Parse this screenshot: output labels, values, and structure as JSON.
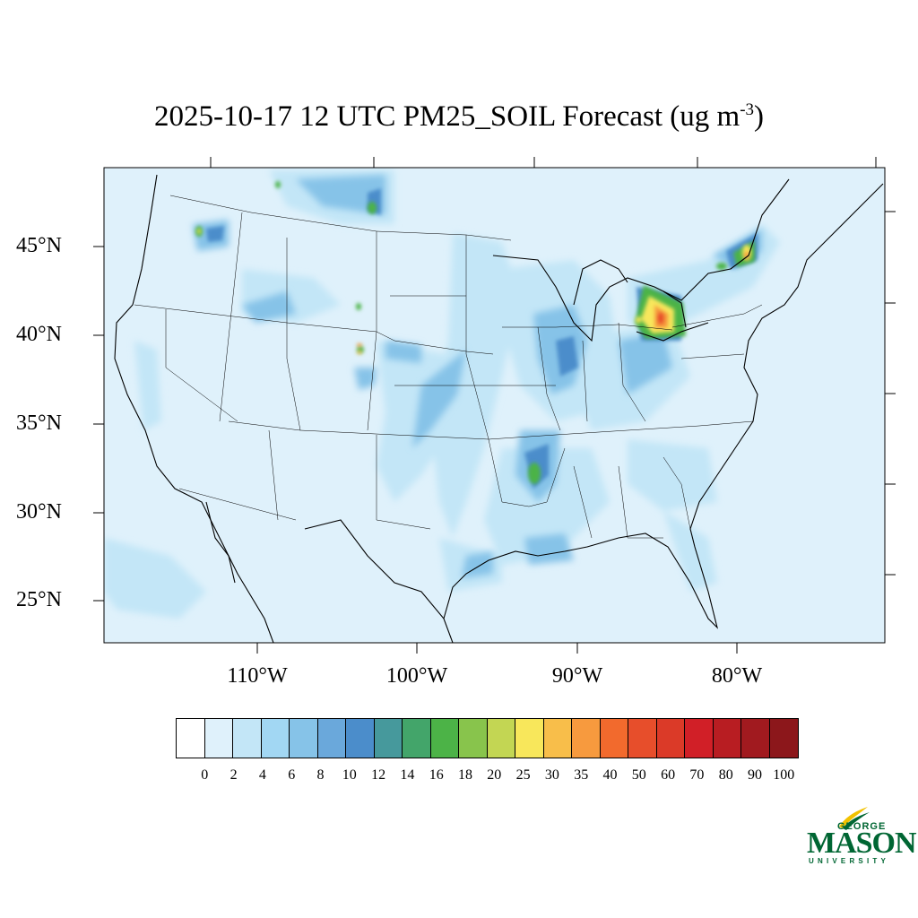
{
  "title": {
    "main": "2025-10-17 12 UTC PM25_SOIL Forecast (ug m",
    "superscript": "-3",
    "suffix": ")"
  },
  "map": {
    "lat_labels": [
      "45°N",
      "40°N",
      "35°N",
      "30°N",
      "25°N"
    ],
    "lon_labels": [
      "110°W",
      "100°W",
      "90°W",
      "80°W"
    ],
    "ocean_color": "#dff1fb"
  },
  "colorbar": {
    "colors": [
      "#ffffff",
      "#dff1fb",
      "#c3e6f7",
      "#a2d7f3",
      "#86c3e8",
      "#6aa8db",
      "#4b8dcb",
      "#46999c",
      "#43a56a",
      "#4cb347",
      "#88c44c",
      "#c3d653",
      "#f8e75b",
      "#f8be4a",
      "#f79a3e",
      "#f26a2d",
      "#e74e2b",
      "#db3a28",
      "#d11f27",
      "#b81d22",
      "#a11a1f",
      "#8c171b"
    ],
    "labels": [
      "0",
      "2",
      "4",
      "6",
      "8",
      "10",
      "12",
      "14",
      "16",
      "18",
      "20",
      "25",
      "30",
      "35",
      "40",
      "50",
      "60",
      "70",
      "80",
      "90",
      "100"
    ]
  },
  "logo": {
    "line1": "GEORGE",
    "line2": "MASON",
    "line3": "UNIVERSITY"
  }
}
